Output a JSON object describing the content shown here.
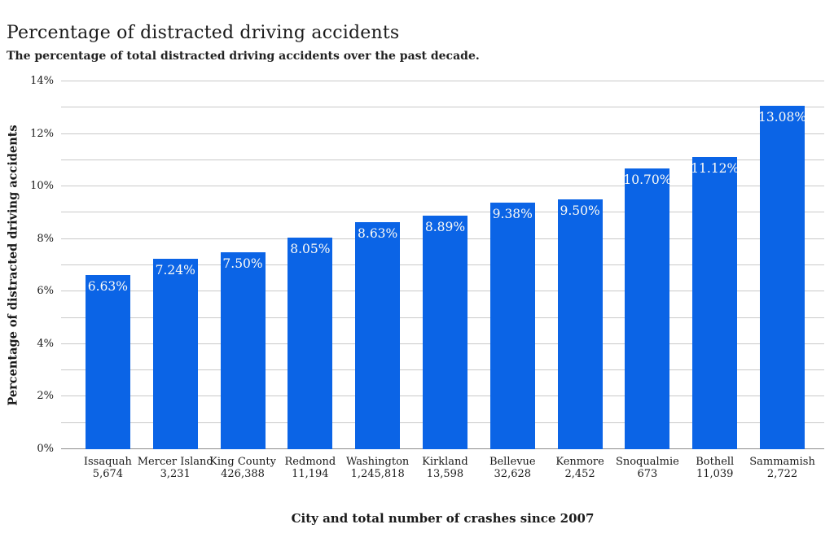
{
  "chart_data": {
    "type": "bar",
    "title": "Percentage of distracted driving accidents",
    "subtitle": "The percentage of total distracted driving accidents over the past decade.",
    "xlabel": "City and total number of crashes since 2007",
    "ylabel": "Percentage of distracted driving accidents",
    "ylim": [
      0,
      14
    ],
    "grid": true,
    "grid_step": 1,
    "legend_position": "none",
    "bar_color": "#0b64e6",
    "bar_label_color": "#fdfbf6",
    "gridline_color": "#c9c9c9",
    "axis_line_color": "#8c8c8c",
    "yticks": [
      {
        "value": 0,
        "label": "0%"
      },
      {
        "value": 2,
        "label": "2%"
      },
      {
        "value": 4,
        "label": "4%"
      },
      {
        "value": 6,
        "label": "6%"
      },
      {
        "value": 8,
        "label": "8%"
      },
      {
        "value": 10,
        "label": "10%"
      },
      {
        "value": 12,
        "label": "12%"
      },
      {
        "value": 14,
        "label": "14%"
      }
    ],
    "bars": [
      {
        "city": "Issaquah",
        "crashes": "5,674",
        "value": 6.63,
        "label": "6.63%"
      },
      {
        "city": "Mercer Island",
        "crashes": "3,231",
        "value": 7.24,
        "label": "7.24%"
      },
      {
        "city": "King County",
        "crashes": "426,388",
        "value": 7.5,
        "label": "7.50%"
      },
      {
        "city": "Redmond",
        "crashes": "11,194",
        "value": 8.05,
        "label": "8.05%"
      },
      {
        "city": "Washington",
        "crashes": "1,245,818",
        "value": 8.63,
        "label": "8.63%"
      },
      {
        "city": "Kirkland",
        "crashes": "13,598",
        "value": 8.89,
        "label": "8.89%"
      },
      {
        "city": "Bellevue",
        "crashes": "32,628",
        "value": 9.38,
        "label": "9.38%"
      },
      {
        "city": "Kenmore",
        "crashes": "2,452",
        "value": 9.5,
        "label": "9.50%"
      },
      {
        "city": "Snoqualmie",
        "crashes": "673",
        "value": 10.7,
        "label": "10.70%"
      },
      {
        "city": "Bothell",
        "crashes": "11,039",
        "value": 11.12,
        "label": "11.12%"
      },
      {
        "city": "Sammamish",
        "crashes": "2,722",
        "value": 13.08,
        "label": "13.08%"
      }
    ]
  }
}
